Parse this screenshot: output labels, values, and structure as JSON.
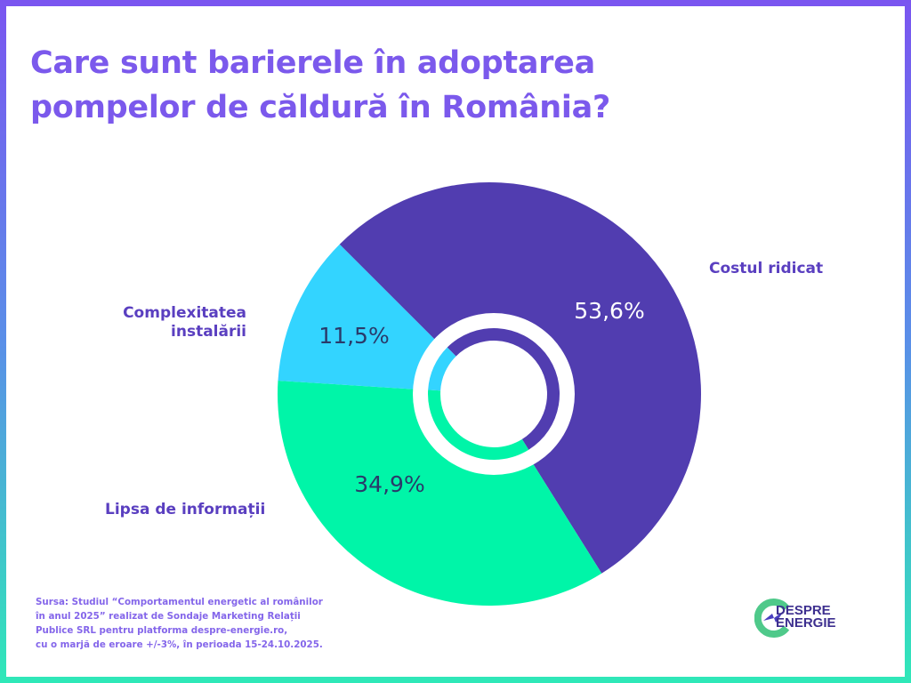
{
  "title": {
    "line1": "Care sunt barierele în adoptarea",
    "line2": "pompelor de căldură în România?"
  },
  "chart_data": {
    "type": "pie",
    "style": "donut with inner ring",
    "categories": [
      "Costul ridicat",
      "Lipsa de informații",
      "Complexitatea instalării"
    ],
    "values": [
      53.6,
      34.9,
      11.5
    ],
    "value_labels": [
      "53,6%",
      "34,9%",
      "11,5%"
    ],
    "category_label_lines": [
      [
        "Costul ridicat"
      ],
      [
        "Lipsa de informații"
      ],
      [
        "Complexitatea",
        "instalării"
      ]
    ],
    "colors": [
      "#513db0",
      "#00f5a8",
      "#33d4ff"
    ],
    "value_label_colors": [
      "#ffffff",
      "#2a3a6a",
      "#2a3a6a"
    ],
    "legend": "labels beside slices"
  },
  "source": {
    "lines": [
      "Sursa: Studiul “Comportamentul energetic al românilor",
      "în anul 2025” realizat de Sondaje Marketing Relații",
      "Publice SRL pentru platforma despre-energie.ro,",
      "cu o marjă de eroare +/-3%, în perioada 15-24.10.2025."
    ]
  },
  "logo": {
    "line1": "DESPRE",
    "line2": "ENERGIE"
  },
  "colors": {
    "title": "#7b59ec",
    "label": "#5a3fc0",
    "border_top": "#7a55f0",
    "border_bottom": "#2fe8b8"
  }
}
